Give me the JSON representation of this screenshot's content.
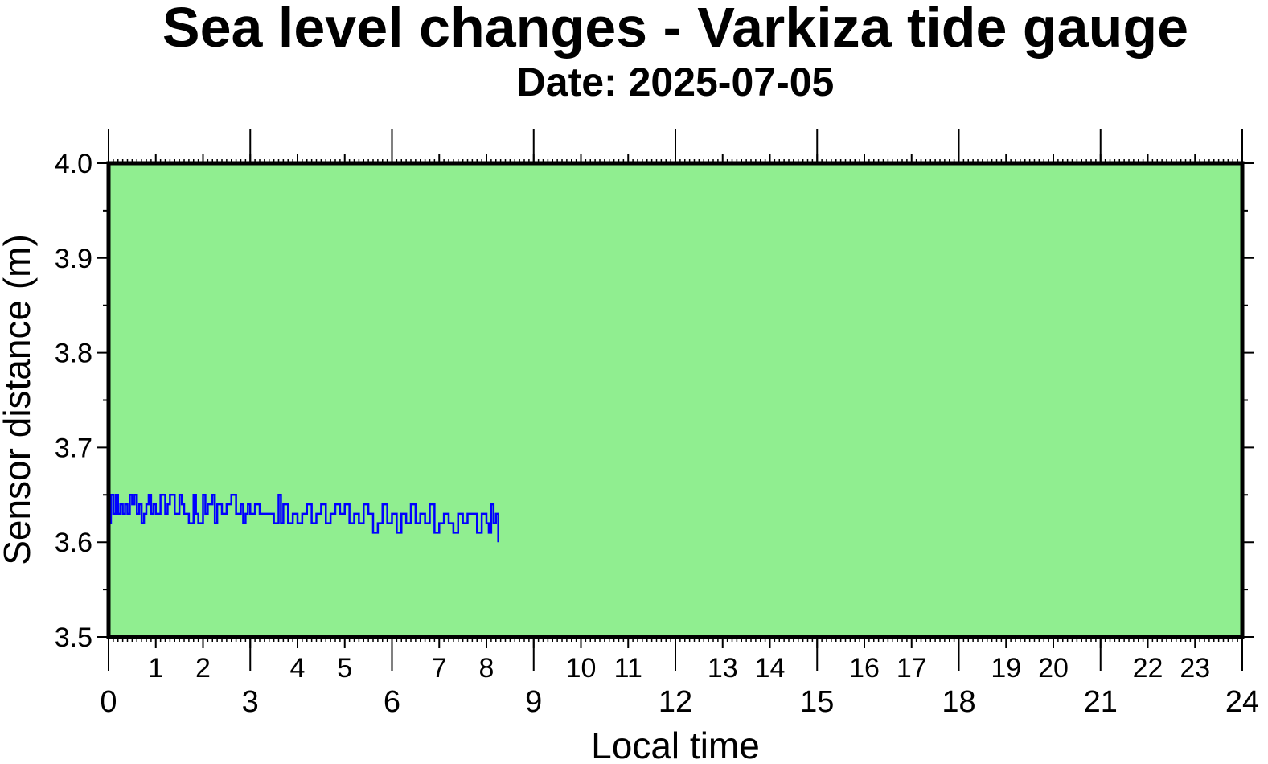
{
  "chart_data": {
    "type": "line",
    "title": "Sea level changes - Varkiza tide gauge",
    "subtitle": "Date: 2025-07-05",
    "xlabel": "Local time",
    "ylabel": "Sensor distance (m)",
    "xlim": [
      0,
      24
    ],
    "ylim": [
      3.5,
      4.0
    ],
    "x_major_ticks": [
      "0",
      "3",
      "6",
      "9",
      "12",
      "15",
      "18",
      "21",
      "24"
    ],
    "x_minor_ticks": [
      "1",
      "2",
      "4",
      "5",
      "7",
      "8",
      "10",
      "11",
      "13",
      "14",
      "16",
      "17",
      "19",
      "20",
      "22",
      "23"
    ],
    "y_ticks": [
      "3.5",
      "3.6",
      "3.7",
      "3.8",
      "3.9",
      "4.0"
    ],
    "grid": false,
    "colors": {
      "background": "#90ee90",
      "line": "#0000ff",
      "frame": "#000000"
    },
    "series": [
      {
        "x": [
          0.0,
          0.05,
          0.1,
          0.15,
          0.2,
          0.25,
          0.3,
          0.35,
          0.4,
          0.45,
          0.5,
          0.55,
          0.6,
          0.65,
          0.7,
          0.75,
          0.8,
          0.85,
          0.9,
          0.95,
          1.0,
          1.1,
          1.2,
          1.25,
          1.3,
          1.4,
          1.5,
          1.55,
          1.6,
          1.7,
          1.8,
          1.85,
          1.9,
          2.0,
          2.05,
          2.1,
          2.2,
          2.25,
          2.3,
          2.4,
          2.5,
          2.6,
          2.7,
          2.8,
          2.85,
          2.9,
          2.95,
          3.0,
          3.1,
          3.2,
          3.3,
          3.4,
          3.5,
          3.6,
          3.65,
          3.7,
          3.8,
          3.9,
          4.0,
          4.1,
          4.2,
          4.3,
          4.4,
          4.5,
          4.6,
          4.7,
          4.8,
          4.9,
          5.0,
          5.1,
          5.2,
          5.3,
          5.4,
          5.5,
          5.6,
          5.7,
          5.8,
          5.9,
          6.0,
          6.1,
          6.2,
          6.3,
          6.4,
          6.5,
          6.6,
          6.7,
          6.8,
          6.9,
          7.0,
          7.1,
          7.2,
          7.3,
          7.4,
          7.5,
          7.6,
          7.7,
          7.8,
          7.9,
          8.0,
          8.05,
          8.1,
          8.15,
          8.2,
          8.25
        ],
        "y": [
          3.62,
          3.65,
          3.63,
          3.65,
          3.63,
          3.64,
          3.63,
          3.64,
          3.63,
          3.65,
          3.64,
          3.65,
          3.63,
          3.64,
          3.62,
          3.63,
          3.64,
          3.65,
          3.63,
          3.64,
          3.63,
          3.65,
          3.63,
          3.64,
          3.65,
          3.63,
          3.65,
          3.64,
          3.63,
          3.62,
          3.65,
          3.63,
          3.62,
          3.65,
          3.63,
          3.64,
          3.65,
          3.62,
          3.64,
          3.63,
          3.64,
          3.65,
          3.63,
          3.64,
          3.62,
          3.63,
          3.64,
          3.63,
          3.64,
          3.63,
          3.63,
          3.63,
          3.62,
          3.65,
          3.62,
          3.64,
          3.62,
          3.63,
          3.62,
          3.63,
          3.64,
          3.62,
          3.63,
          3.64,
          3.62,
          3.63,
          3.64,
          3.63,
          3.64,
          3.62,
          3.63,
          3.62,
          3.64,
          3.63,
          3.61,
          3.62,
          3.64,
          3.62,
          3.63,
          3.61,
          3.63,
          3.62,
          3.64,
          3.62,
          3.63,
          3.62,
          3.64,
          3.61,
          3.62,
          3.63,
          3.62,
          3.61,
          3.63,
          3.62,
          3.63,
          3.63,
          3.61,
          3.63,
          3.62,
          3.61,
          3.64,
          3.62,
          3.63,
          3.6
        ]
      }
    ]
  }
}
